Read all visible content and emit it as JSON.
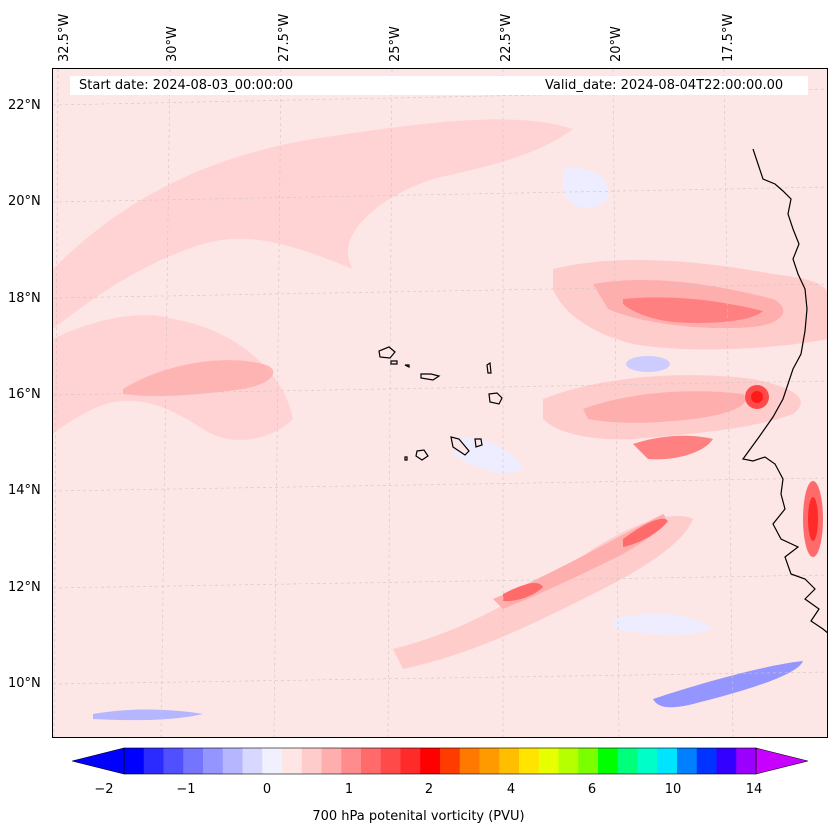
{
  "map": {
    "lon_labels": [
      "32.5°W",
      "30°W",
      "27.5°W",
      "25°W",
      "22.5°W",
      "20°W",
      "17.5°W"
    ],
    "lat_labels": [
      "22°N",
      "20°N",
      "18°N",
      "16°N",
      "14°N",
      "12°N",
      "10°N"
    ],
    "start_date": "Start date: 2024-08-03_00:00:00",
    "valid_date": "Valid_date: 2024-08-04T22:00:00.00",
    "field": "700 hPa potential vorticity (PVU)"
  },
  "colorbar": {
    "label": "700 hPa potenital vorticity (PVU)",
    "ticks": [
      "−2",
      "−1",
      "0",
      "1",
      "2",
      "4",
      "6",
      "10",
      "14"
    ],
    "colors": [
      "#0000ff",
      "#2b2bff",
      "#5050ff",
      "#7474ff",
      "#9595ff",
      "#b6b6ff",
      "#d7d7ff",
      "#f0f0ff",
      "#ffe6e6",
      "#ffcccc",
      "#ffaeae",
      "#ff8c8c",
      "#ff6b6b",
      "#ff4a4a",
      "#ff2a2a",
      "#ff0000",
      "#ff3c00",
      "#ff7800",
      "#ff9b00",
      "#ffbf00",
      "#ffe400",
      "#e7ff00",
      "#b5ff00",
      "#7bff00",
      "#00ff00",
      "#00ff7a",
      "#00ffc8",
      "#00e4ff",
      "#0080ff",
      "#0033ff",
      "#3300ff",
      "#9b00ff"
    ],
    "under_color": "#0000ff",
    "over_color": "#c800ff"
  }
}
